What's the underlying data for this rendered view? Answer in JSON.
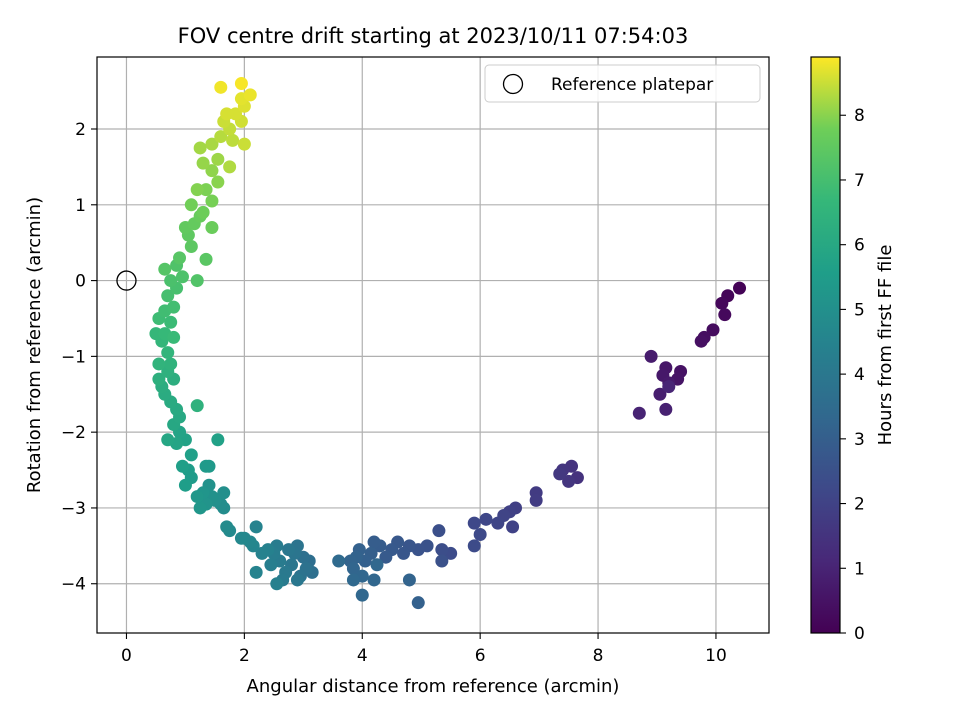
{
  "chart_data": {
    "type": "scatter",
    "title": "FOV centre drift starting at 2023/10/11 07:54:03",
    "xlabel": "Angular distance from reference (arcmin)",
    "ylabel": "Rotation from reference (arcmin)",
    "colorbar_label": "Hours from first FF file",
    "xlim": [
      -0.5,
      10.9
    ],
    "ylim": [
      -4.65,
      2.95
    ],
    "clim": [
      0,
      8.9
    ],
    "xticks": [
      0,
      2,
      4,
      6,
      8,
      10
    ],
    "xtick_labels": [
      "0",
      "2",
      "4",
      "6",
      "8",
      "10"
    ],
    "yticks": [
      -4,
      -3,
      -2,
      -1,
      0,
      1,
      2
    ],
    "ytick_labels": [
      "−4",
      "−3",
      "−2",
      "−1",
      "0",
      "1",
      "2"
    ],
    "cticks": [
      0,
      1,
      2,
      3,
      4,
      5,
      6,
      7,
      8
    ],
    "ctick_labels": [
      "0",
      "1",
      "2",
      "3",
      "4",
      "5",
      "6",
      "7",
      "8"
    ],
    "grid": true,
    "colormap": "viridis",
    "legend": {
      "placement": "top-right",
      "label": "Reference platepar"
    },
    "reference_point": {
      "x": 0,
      "y": 0
    },
    "points": [
      {
        "x": 10.4,
        "y": -0.1,
        "h": 0.05
      },
      {
        "x": 10.2,
        "y": -0.2,
        "h": 0.12
      },
      {
        "x": 10.1,
        "y": -0.3,
        "h": 0.18
      },
      {
        "x": 10.15,
        "y": -0.45,
        "h": 0.24
      },
      {
        "x": 9.95,
        "y": -0.65,
        "h": 0.3
      },
      {
        "x": 9.8,
        "y": -0.75,
        "h": 0.36
      },
      {
        "x": 9.75,
        "y": -0.8,
        "h": 0.42
      },
      {
        "x": 9.4,
        "y": -1.2,
        "h": 0.48
      },
      {
        "x": 9.35,
        "y": -1.3,
        "h": 0.54
      },
      {
        "x": 9.15,
        "y": -1.15,
        "h": 0.6
      },
      {
        "x": 9.1,
        "y": -1.25,
        "h": 0.66
      },
      {
        "x": 9.2,
        "y": -1.35,
        "h": 0.72
      },
      {
        "x": 8.9,
        "y": -1.0,
        "h": 0.78
      },
      {
        "x": 9.05,
        "y": -1.5,
        "h": 0.84
      },
      {
        "x": 9.15,
        "y": -1.7,
        "h": 0.9
      },
      {
        "x": 8.7,
        "y": -1.75,
        "h": 0.96
      },
      {
        "x": 9.2,
        "y": -1.4,
        "h": 1.02
      },
      {
        "x": 7.65,
        "y": -2.6,
        "h": 1.45
      },
      {
        "x": 7.55,
        "y": -2.45,
        "h": 1.5
      },
      {
        "x": 7.4,
        "y": -2.5,
        "h": 1.55
      },
      {
        "x": 7.5,
        "y": -2.65,
        "h": 1.6
      },
      {
        "x": 7.35,
        "y": -2.55,
        "h": 1.65
      },
      {
        "x": 6.95,
        "y": -2.8,
        "h": 1.75
      },
      {
        "x": 6.95,
        "y": -2.9,
        "h": 1.8
      },
      {
        "x": 6.6,
        "y": -3.0,
        "h": 1.9
      },
      {
        "x": 6.5,
        "y": -3.05,
        "h": 1.95
      },
      {
        "x": 6.55,
        "y": -3.25,
        "h": 2.0
      },
      {
        "x": 6.4,
        "y": -3.1,
        "h": 2.05
      },
      {
        "x": 6.3,
        "y": -3.2,
        "h": 2.1
      },
      {
        "x": 6.1,
        "y": -3.15,
        "h": 2.15
      },
      {
        "x": 5.9,
        "y": -3.2,
        "h": 2.2
      },
      {
        "x": 6.0,
        "y": -3.35,
        "h": 2.25
      },
      {
        "x": 5.9,
        "y": -3.5,
        "h": 2.3
      },
      {
        "x": 5.5,
        "y": -3.6,
        "h": 2.35
      },
      {
        "x": 5.35,
        "y": -3.55,
        "h": 2.4
      },
      {
        "x": 5.3,
        "y": -3.3,
        "h": 2.45
      },
      {
        "x": 5.35,
        "y": -3.7,
        "h": 2.5
      },
      {
        "x": 5.1,
        "y": -3.5,
        "h": 2.55
      },
      {
        "x": 4.95,
        "y": -3.55,
        "h": 2.6
      },
      {
        "x": 4.8,
        "y": -3.5,
        "h": 2.65
      },
      {
        "x": 4.7,
        "y": -3.6,
        "h": 2.7
      },
      {
        "x": 4.6,
        "y": -3.45,
        "h": 2.75
      },
      {
        "x": 4.5,
        "y": -3.55,
        "h": 2.8
      },
      {
        "x": 4.4,
        "y": -3.65,
        "h": 2.85
      },
      {
        "x": 4.3,
        "y": -3.5,
        "h": 2.9
      },
      {
        "x": 4.2,
        "y": -3.45,
        "h": 2.95
      },
      {
        "x": 4.15,
        "y": -3.6,
        "h": 3.0
      },
      {
        "x": 4.05,
        "y": -3.7,
        "h": 3.05
      },
      {
        "x": 3.95,
        "y": -3.55,
        "h": 3.1
      },
      {
        "x": 3.9,
        "y": -3.65,
        "h": 3.15
      },
      {
        "x": 3.8,
        "y": -3.7,
        "h": 3.2
      },
      {
        "x": 3.85,
        "y": -3.8,
        "h": 3.25
      },
      {
        "x": 4.0,
        "y": -3.9,
        "h": 3.3
      },
      {
        "x": 4.25,
        "y": -3.75,
        "h": 3.35
      },
      {
        "x": 4.8,
        "y": -3.95,
        "h": 3.2
      },
      {
        "x": 4.95,
        "y": -4.25,
        "h": 3.1
      },
      {
        "x": 4.0,
        "y": -4.15,
        "h": 3.35
      },
      {
        "x": 3.85,
        "y": -3.95,
        "h": 3.4
      },
      {
        "x": 3.6,
        "y": -3.7,
        "h": 3.45
      },
      {
        "x": 4.2,
        "y": -3.95,
        "h": 3.3
      },
      {
        "x": 3.1,
        "y": -3.7,
        "h": 3.6
      },
      {
        "x": 3.15,
        "y": -3.85,
        "h": 3.65
      },
      {
        "x": 3.0,
        "y": -3.65,
        "h": 3.7
      },
      {
        "x": 3.05,
        "y": -3.8,
        "h": 3.75
      },
      {
        "x": 2.95,
        "y": -3.9,
        "h": 3.8
      },
      {
        "x": 2.9,
        "y": -3.5,
        "h": 3.85
      },
      {
        "x": 2.85,
        "y": -3.6,
        "h": 3.9
      },
      {
        "x": 2.8,
        "y": -3.75,
        "h": 3.95
      },
      {
        "x": 2.75,
        "y": -3.55,
        "h": 4.0
      },
      {
        "x": 2.7,
        "y": -3.85,
        "h": 4.05
      },
      {
        "x": 2.65,
        "y": -3.95,
        "h": 4.1
      },
      {
        "x": 2.6,
        "y": -3.7,
        "h": 4.15
      },
      {
        "x": 2.55,
        "y": -3.5,
        "h": 4.2
      },
      {
        "x": 2.5,
        "y": -3.6,
        "h": 4.25
      },
      {
        "x": 2.45,
        "y": -3.75,
        "h": 4.3
      },
      {
        "x": 2.55,
        "y": -4.0,
        "h": 4.35
      },
      {
        "x": 2.9,
        "y": -3.95,
        "h": 4.0
      },
      {
        "x": 2.4,
        "y": -3.55,
        "h": 4.4
      },
      {
        "x": 2.3,
        "y": -3.6,
        "h": 4.45
      },
      {
        "x": 2.2,
        "y": -3.25,
        "h": 4.5
      },
      {
        "x": 2.2,
        "y": -3.85,
        "h": 4.5
      },
      {
        "x": 2.15,
        "y": -3.5,
        "h": 4.55
      },
      {
        "x": 2.1,
        "y": -3.45,
        "h": 4.6
      },
      {
        "x": 2.0,
        "y": -3.4,
        "h": 4.65
      },
      {
        "x": 1.95,
        "y": -3.4,
        "h": 4.7
      },
      {
        "x": 1.75,
        "y": -3.3,
        "h": 4.75
      },
      {
        "x": 1.7,
        "y": -3.25,
        "h": 4.8
      },
      {
        "x": 1.65,
        "y": -3.0,
        "h": 4.85
      },
      {
        "x": 1.6,
        "y": -2.95,
        "h": 4.9
      },
      {
        "x": 1.65,
        "y": -2.8,
        "h": 4.95
      },
      {
        "x": 1.5,
        "y": -2.9,
        "h": 5.0
      },
      {
        "x": 1.45,
        "y": -2.85,
        "h": 5.05
      },
      {
        "x": 1.4,
        "y": -2.7,
        "h": 5.1
      },
      {
        "x": 1.35,
        "y": -2.95,
        "h": 5.15
      },
      {
        "x": 1.3,
        "y": -2.8,
        "h": 5.2
      },
      {
        "x": 1.25,
        "y": -3.0,
        "h": 5.25
      },
      {
        "x": 1.2,
        "y": -2.85,
        "h": 5.3
      },
      {
        "x": 1.4,
        "y": -2.45,
        "h": 5.35
      },
      {
        "x": 1.35,
        "y": -2.45,
        "h": 5.4
      },
      {
        "x": 1.1,
        "y": -2.6,
        "h": 5.45
      },
      {
        "x": 1.05,
        "y": -2.5,
        "h": 5.5
      },
      {
        "x": 1.0,
        "y": -2.7,
        "h": 5.55
      },
      {
        "x": 0.95,
        "y": -2.45,
        "h": 5.6
      },
      {
        "x": 1.1,
        "y": -2.3,
        "h": 5.65
      },
      {
        "x": 1.55,
        "y": -2.1,
        "h": 5.7
      },
      {
        "x": 1.0,
        "y": -2.1,
        "h": 5.75
      },
      {
        "x": 0.9,
        "y": -2.0,
        "h": 5.8
      },
      {
        "x": 0.85,
        "y": -2.15,
        "h": 5.85
      },
      {
        "x": 0.7,
        "y": -2.1,
        "h": 5.9
      },
      {
        "x": 0.8,
        "y": -1.9,
        "h": 5.95
      },
      {
        "x": 0.9,
        "y": -1.8,
        "h": 6.0
      },
      {
        "x": 0.85,
        "y": -1.7,
        "h": 6.05
      },
      {
        "x": 0.75,
        "y": -1.6,
        "h": 6.1
      },
      {
        "x": 0.65,
        "y": -1.5,
        "h": 6.15
      },
      {
        "x": 0.6,
        "y": -1.4,
        "h": 6.2
      },
      {
        "x": 0.8,
        "y": -1.3,
        "h": 6.25
      },
      {
        "x": 0.55,
        "y": -1.3,
        "h": 6.3
      },
      {
        "x": 0.7,
        "y": -1.2,
        "h": 6.35
      },
      {
        "x": 1.2,
        "y": -1.65,
        "h": 6.4
      },
      {
        "x": 0.75,
        "y": -1.1,
        "h": 6.45
      },
      {
        "x": 0.55,
        "y": -1.1,
        "h": 6.5
      },
      {
        "x": 0.7,
        "y": -0.95,
        "h": 6.55
      },
      {
        "x": 0.6,
        "y": -0.8,
        "h": 6.6
      },
      {
        "x": 0.5,
        "y": -0.7,
        "h": 6.65
      },
      {
        "x": 0.65,
        "y": -0.7,
        "h": 6.7
      },
      {
        "x": 0.8,
        "y": -0.75,
        "h": 6.75
      },
      {
        "x": 0.75,
        "y": -0.55,
        "h": 6.8
      },
      {
        "x": 0.55,
        "y": -0.5,
        "h": 6.85
      },
      {
        "x": 0.65,
        "y": -0.4,
        "h": 6.9
      },
      {
        "x": 0.8,
        "y": -0.35,
        "h": 6.95
      },
      {
        "x": 0.7,
        "y": -0.2,
        "h": 7.0
      },
      {
        "x": 0.85,
        "y": -0.1,
        "h": 7.05
      },
      {
        "x": 0.75,
        "y": 0.0,
        "h": 7.1
      },
      {
        "x": 0.95,
        "y": 0.05,
        "h": 7.15
      },
      {
        "x": 0.85,
        "y": 0.2,
        "h": 7.2
      },
      {
        "x": 1.2,
        "y": 0.0,
        "h": 7.25
      },
      {
        "x": 0.65,
        "y": 0.15,
        "h": 7.3
      },
      {
        "x": 0.9,
        "y": 0.3,
        "h": 7.35
      },
      {
        "x": 1.35,
        "y": 0.28,
        "h": 7.4
      },
      {
        "x": 1.1,
        "y": 0.45,
        "h": 7.45
      },
      {
        "x": 1.05,
        "y": 0.6,
        "h": 7.5
      },
      {
        "x": 1.0,
        "y": 0.7,
        "h": 7.55
      },
      {
        "x": 1.15,
        "y": 0.75,
        "h": 7.6
      },
      {
        "x": 1.25,
        "y": 0.85,
        "h": 7.65
      },
      {
        "x": 1.45,
        "y": 0.7,
        "h": 7.7
      },
      {
        "x": 1.3,
        "y": 0.9,
        "h": 7.75
      },
      {
        "x": 1.1,
        "y": 1.0,
        "h": 7.8
      },
      {
        "x": 1.45,
        "y": 1.05,
        "h": 7.85
      },
      {
        "x": 1.35,
        "y": 1.2,
        "h": 7.9
      },
      {
        "x": 1.2,
        "y": 1.2,
        "h": 7.95
      },
      {
        "x": 1.55,
        "y": 1.3,
        "h": 8.0
      },
      {
        "x": 1.45,
        "y": 1.45,
        "h": 8.05
      },
      {
        "x": 1.3,
        "y": 1.55,
        "h": 8.1
      },
      {
        "x": 1.55,
        "y": 1.6,
        "h": 8.15
      },
      {
        "x": 1.25,
        "y": 1.75,
        "h": 8.2
      },
      {
        "x": 1.45,
        "y": 1.8,
        "h": 8.25
      },
      {
        "x": 1.75,
        "y": 1.5,
        "h": 8.3
      },
      {
        "x": 1.6,
        "y": 1.9,
        "h": 8.35
      },
      {
        "x": 1.8,
        "y": 1.85,
        "h": 8.4
      },
      {
        "x": 1.75,
        "y": 2.0,
        "h": 8.45
      },
      {
        "x": 1.65,
        "y": 2.1,
        "h": 8.5
      },
      {
        "x": 1.95,
        "y": 2.1,
        "h": 8.55
      },
      {
        "x": 1.85,
        "y": 2.2,
        "h": 8.6
      },
      {
        "x": 2.0,
        "y": 2.3,
        "h": 8.65
      },
      {
        "x": 1.95,
        "y": 2.4,
        "h": 8.7
      },
      {
        "x": 2.1,
        "y": 2.45,
        "h": 8.75
      },
      {
        "x": 1.6,
        "y": 2.55,
        "h": 8.8
      },
      {
        "x": 1.95,
        "y": 2.6,
        "h": 8.85
      },
      {
        "x": 2.0,
        "y": 1.8,
        "h": 8.5
      },
      {
        "x": 1.7,
        "y": 2.2,
        "h": 8.6
      }
    ]
  }
}
